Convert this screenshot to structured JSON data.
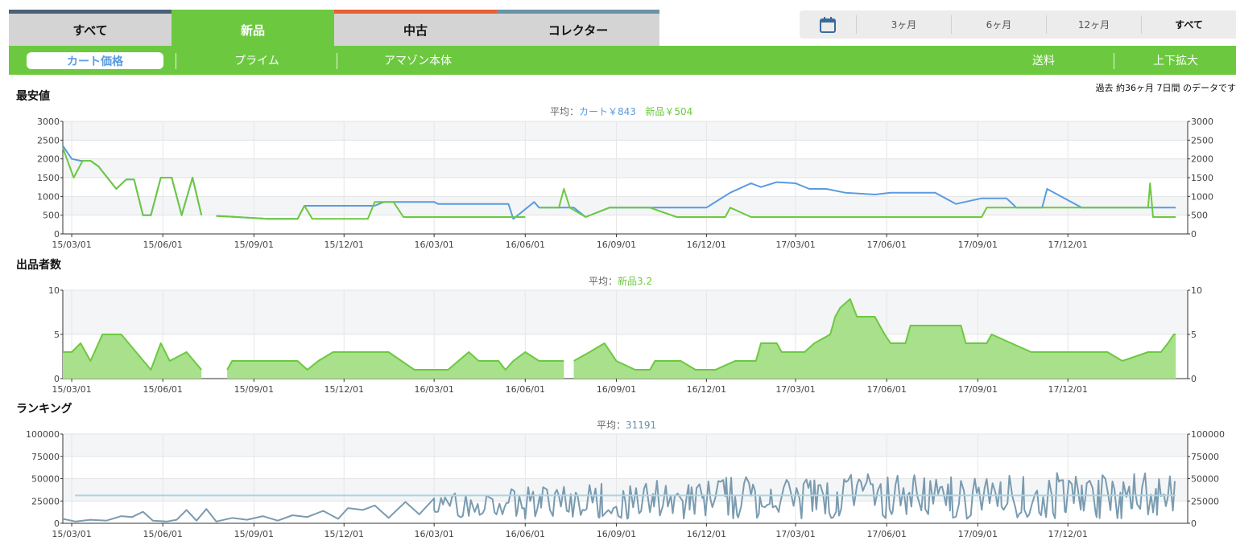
{
  "condition_tabs": [
    {
      "label": "すべて",
      "color": "#4a6278",
      "active": false
    },
    {
      "label": "新品",
      "color": "#6cc93f",
      "active": true
    },
    {
      "label": "中古",
      "color": "#e85f35",
      "active": false
    },
    {
      "label": "コレクター",
      "color": "#6b93a8",
      "active": false
    }
  ],
  "range": {
    "icon": "calendar-icon",
    "options": [
      "3ヶ月",
      "6ヶ月",
      "12ヶ月",
      "すべて"
    ],
    "selected": "すべて"
  },
  "subbar": {
    "cart": "カート価格",
    "prime": "プライム",
    "amazon": "アマゾン本体",
    "shipping": "送料",
    "zoom": "上下拡大"
  },
  "period_note": "過去 約36ヶ月 7日間 のデータです",
  "colors": {
    "accent": "#6cc93f",
    "cart": "#5a9be0",
    "new": "#6cc93f",
    "rank": "#7a9bb0",
    "rank_avg": "#a9d4e0"
  },
  "price": {
    "title": "最安値",
    "avg_prefix": "平均：",
    "avg_cart": "カート￥843",
    "avg_new": "新品￥504"
  },
  "sellers": {
    "title": "出品者数",
    "avg_prefix": "平均：",
    "avg_new": "新品3.2"
  },
  "ranking": {
    "title": "ランキング",
    "avg_prefix": "平均：",
    "avg_value": "31191"
  },
  "chart_data": [
    {
      "type": "line",
      "name": "price",
      "title": "最安値",
      "ylim": [
        0,
        3000
      ],
      "yticks": [
        0,
        500,
        1000,
        1500,
        2000,
        2500,
        3000
      ],
      "xticks": [
        "15/03/01",
        "15/06/01",
        "15/09/01",
        "15/12/01",
        "16/03/01",
        "16/06/01",
        "16/09/01",
        "16/12/01",
        "17/03/01",
        "17/06/01",
        "17/09/01",
        "17/12/01"
      ],
      "series": [
        {
          "name": "カート",
          "color": "#5a9be0",
          "points": [
            [
              "2015-02-20",
              2350
            ],
            [
              "2015-03-01",
              2000
            ],
            [
              "2015-03-10",
              1950
            ],
            [
              "2015-03-20",
              1950
            ],
            [
              "2015-03-28",
              1800
            ],
            [
              "2015-04-15",
              1200
            ],
            [
              "2015-04-25",
              1450
            ],
            [
              "2015-05-03",
              1450
            ],
            [
              "2015-05-12",
              500
            ],
            [
              "2015-05-20",
              500
            ],
            [
              "2015-05-30",
              1500
            ],
            [
              "2015-06-10",
              1500
            ],
            [
              "2015-06-20",
              500
            ],
            [
              "2015-07-01",
              1500
            ],
            [
              "2015-07-10",
              500
            ],
            null,
            [
              "2015-07-25",
              480
            ],
            [
              "2015-08-15",
              450
            ],
            [
              "2015-09-15",
              400
            ],
            [
              "2015-10-15",
              400
            ],
            [
              "2015-10-22",
              750
            ],
            [
              "2016-01-01",
              750
            ],
            [
              "2016-01-10",
              850
            ],
            [
              "2016-03-01",
              850
            ],
            [
              "2016-03-05",
              800
            ],
            [
              "2016-05-15",
              800
            ],
            [
              "2016-05-20",
              400
            ],
            [
              "2016-06-10",
              850
            ],
            [
              "2016-06-15",
              700
            ],
            [
              "2016-07-20",
              700
            ],
            [
              "2016-08-01",
              450
            ],
            [
              "2016-08-25",
              700
            ],
            [
              "2016-11-01",
              700
            ],
            [
              "2016-12-01",
              700
            ],
            [
              "2016-12-25",
              1100
            ],
            [
              "2017-01-15",
              1350
            ],
            [
              "2017-01-25",
              1250
            ],
            [
              "2017-02-10",
              1380
            ],
            [
              "2017-03-01",
              1350
            ],
            [
              "2017-03-15",
              1200
            ],
            [
              "2017-04-01",
              1200
            ],
            [
              "2017-04-20",
              1100
            ],
            [
              "2017-05-20",
              1050
            ],
            [
              "2017-06-05",
              1100
            ],
            [
              "2017-07-20",
              1100
            ],
            [
              "2017-08-10",
              800
            ],
            [
              "2017-09-05",
              950
            ],
            [
              "2017-09-30",
              950
            ],
            [
              "2017-10-10",
              700
            ],
            [
              "2017-11-05",
              700
            ],
            [
              "2017-11-10",
              1200
            ],
            [
              "2017-12-15",
              700
            ],
            [
              "2018-03-20",
              700
            ]
          ]
        },
        {
          "name": "新品",
          "color": "#6cc93f",
          "points": [
            [
              "2015-02-20",
              2300
            ],
            [
              "2015-03-03",
              1500
            ],
            [
              "2015-03-12",
              1950
            ],
            [
              "2015-03-20",
              1950
            ],
            [
              "2015-03-28",
              1800
            ],
            [
              "2015-04-15",
              1200
            ],
            [
              "2015-04-25",
              1450
            ],
            [
              "2015-05-03",
              1450
            ],
            [
              "2015-05-12",
              500
            ],
            [
              "2015-05-20",
              500
            ],
            [
              "2015-05-30",
              1500
            ],
            [
              "2015-06-10",
              1500
            ],
            [
              "2015-06-20",
              500
            ],
            [
              "2015-07-01",
              1500
            ],
            [
              "2015-07-10",
              500
            ],
            null,
            [
              "2015-07-25",
              480
            ],
            [
              "2015-08-15",
              450
            ],
            [
              "2015-09-15",
              400
            ],
            [
              "2015-10-15",
              400
            ],
            [
              "2015-10-22",
              750
            ],
            [
              "2015-10-30",
              400
            ],
            [
              "2015-12-01",
              400
            ],
            [
              "2015-12-25",
              400
            ],
            [
              "2016-01-01",
              850
            ],
            [
              "2016-01-20",
              850
            ],
            [
              "2016-01-30",
              450
            ],
            [
              "2016-06-01",
              450
            ],
            null,
            [
              "2016-06-15",
              700
            ],
            [
              "2016-07-05",
              700
            ],
            [
              "2016-07-10",
              1200
            ],
            [
              "2016-07-16",
              700
            ],
            [
              "2016-08-01",
              450
            ],
            [
              "2016-08-25",
              700
            ],
            [
              "2016-10-05",
              700
            ],
            [
              "2016-11-01",
              450
            ],
            [
              "2016-12-20",
              450
            ],
            [
              "2016-12-25",
              700
            ],
            [
              "2017-01-15",
              450
            ],
            [
              "2017-03-01",
              450
            ],
            [
              "2017-06-05",
              450
            ],
            [
              "2017-07-20",
              450
            ],
            [
              "2017-08-10",
              450
            ],
            [
              "2017-09-05",
              450
            ],
            [
              "2017-09-10",
              700
            ],
            [
              "2018-02-20",
              700
            ],
            [
              "2018-02-22",
              1350
            ],
            [
              "2018-02-25",
              450
            ],
            [
              "2018-03-20",
              450
            ]
          ]
        }
      ]
    },
    {
      "type": "area",
      "name": "sellers",
      "title": "出品者数",
      "ylim": [
        0,
        10
      ],
      "yticks": [
        0,
        5,
        10
      ],
      "xticks": [
        "15/03/01",
        "15/06/01",
        "15/09/01",
        "15/12/01",
        "16/03/01",
        "16/06/01",
        "16/09/01",
        "16/12/01",
        "17/03/01",
        "17/06/01",
        "17/09/01",
        "17/12/01"
      ],
      "series": [
        {
          "name": "新品",
          "color": "#6cc93f",
          "points": [
            [
              "2015-02-20",
              3
            ],
            [
              "2015-03-01",
              3
            ],
            [
              "2015-03-10",
              4
            ],
            [
              "2015-03-20",
              2
            ],
            [
              "2015-04-01",
              5
            ],
            [
              "2015-04-20",
              5
            ],
            [
              "2015-05-20",
              1
            ],
            [
              "2015-05-30",
              4
            ],
            [
              "2015-06-08",
              2
            ],
            [
              "2015-06-25",
              3
            ],
            [
              "2015-07-10",
              1
            ],
            null,
            [
              "2015-08-05",
              1
            ],
            [
              "2015-08-10",
              2
            ],
            [
              "2015-10-15",
              2
            ],
            [
              "2015-10-25",
              1
            ],
            [
              "2015-11-05",
              2
            ],
            [
              "2015-11-20",
              3
            ],
            [
              "2016-01-15",
              3
            ],
            [
              "2016-02-10",
              1
            ],
            [
              "2016-03-15",
              1
            ],
            [
              "2016-04-05",
              3
            ],
            [
              "2016-04-15",
              2
            ],
            [
              "2016-05-05",
              2
            ],
            [
              "2016-05-12",
              1
            ],
            [
              "2016-05-20",
              2
            ],
            [
              "2016-06-01",
              3
            ],
            [
              "2016-06-15",
              2
            ],
            [
              "2016-07-10",
              2
            ],
            null,
            [
              "2016-07-20",
              2
            ],
            [
              "2016-08-05",
              3
            ],
            [
              "2016-08-20",
              4
            ],
            [
              "2016-09-01",
              2
            ],
            [
              "2016-09-20",
              1
            ],
            [
              "2016-10-05",
              1
            ],
            [
              "2016-10-10",
              2
            ],
            [
              "2016-11-05",
              2
            ],
            [
              "2016-11-20",
              1
            ],
            [
              "2016-12-10",
              1
            ],
            [
              "2016-12-30",
              2
            ],
            [
              "2017-01-20",
              2
            ],
            [
              "2017-01-25",
              4
            ],
            [
              "2017-02-10",
              4
            ],
            [
              "2017-02-15",
              3
            ],
            [
              "2017-03-10",
              3
            ],
            [
              "2017-03-20",
              4
            ],
            [
              "2017-04-05",
              5
            ],
            [
              "2017-04-10",
              7
            ],
            [
              "2017-04-15",
              8
            ],
            [
              "2017-04-25",
              9
            ],
            [
              "2017-05-02",
              7
            ],
            [
              "2017-05-20",
              7
            ],
            [
              "2017-05-30",
              5
            ],
            [
              "2017-06-05",
              4
            ],
            [
              "2017-06-20",
              4
            ],
            [
              "2017-06-25",
              6
            ],
            [
              "2017-08-15",
              6
            ],
            [
              "2017-08-20",
              4
            ],
            [
              "2017-09-10",
              4
            ],
            [
              "2017-09-15",
              5
            ],
            [
              "2017-10-05",
              4
            ],
            [
              "2017-10-25",
              3
            ],
            [
              "2017-12-10",
              3
            ],
            [
              "2018-01-10",
              3
            ],
            [
              "2018-01-25",
              2
            ],
            [
              "2018-02-20",
              3
            ],
            [
              "2018-03-05",
              3
            ],
            [
              "2018-03-12",
              4
            ],
            [
              "2018-03-18",
              5
            ],
            [
              "2018-03-20",
              5
            ]
          ]
        }
      ]
    },
    {
      "type": "line",
      "name": "ranking",
      "title": "ランキング",
      "ylim": [
        0,
        100000
      ],
      "yticks": [
        0,
        25000,
        50000,
        75000,
        100000
      ],
      "xticks": [
        "15/03/01",
        "15/06/01",
        "15/09/01",
        "15/12/01",
        "16/03/01",
        "16/06/01",
        "16/09/01",
        "16/12/01",
        "17/03/01",
        "17/06/01",
        "17/09/01",
        "17/12/01"
      ],
      "average": 31191,
      "series": [
        {
          "name": "ランキング",
          "color": "#7a9bb0",
          "points": [
            [
              "2015-02-20",
              5000
            ],
            [
              "2015-03-05",
              2000
            ],
            [
              "2015-03-20",
              4000
            ],
            [
              "2015-04-05",
              3000
            ],
            [
              "2015-04-20",
              8000
            ],
            [
              "2015-05-01",
              7000
            ],
            [
              "2015-05-12",
              13000
            ],
            [
              "2015-05-22",
              3000
            ],
            [
              "2015-06-05",
              2000
            ],
            [
              "2015-06-15",
              4000
            ],
            [
              "2015-06-25",
              15000
            ],
            [
              "2015-07-05",
              3000
            ],
            [
              "2015-07-15",
              16000
            ],
            [
              "2015-07-25",
              2000
            ],
            [
              "2015-08-10",
              6000
            ],
            [
              "2015-08-25",
              4000
            ],
            [
              "2015-09-10",
              8000
            ],
            [
              "2015-09-25",
              3000
            ],
            [
              "2015-10-10",
              9000
            ],
            [
              "2015-10-25",
              7000
            ],
            [
              "2015-11-10",
              14000
            ],
            [
              "2015-11-25",
              5000
            ],
            [
              "2015-12-05",
              17000
            ],
            [
              "2015-12-20",
              15000
            ],
            [
              "2016-01-01",
              20000
            ],
            [
              "2016-01-15",
              6000
            ],
            [
              "2016-02-01",
              24000
            ],
            [
              "2016-02-15",
              10000
            ],
            [
              "2016-03-01",
              28000
            ]
          ],
          "noisy": {
            "start": "2016-03-01",
            "end": "2018-03-20",
            "seed": 7,
            "segments": [
              [
                "2016-03-01",
                30000
              ],
              [
                "2016-06-01",
                38000
              ],
              [
                "2016-09-01",
                42000
              ],
              [
                "2016-12-01",
                47000
              ],
              [
                "2017-03-01",
                49000
              ],
              [
                "2017-06-01",
                51000
              ],
              [
                "2017-09-01",
                52000
              ],
              [
                "2018-03-20",
                52000
              ]
            ]
          }
        }
      ]
    }
  ]
}
